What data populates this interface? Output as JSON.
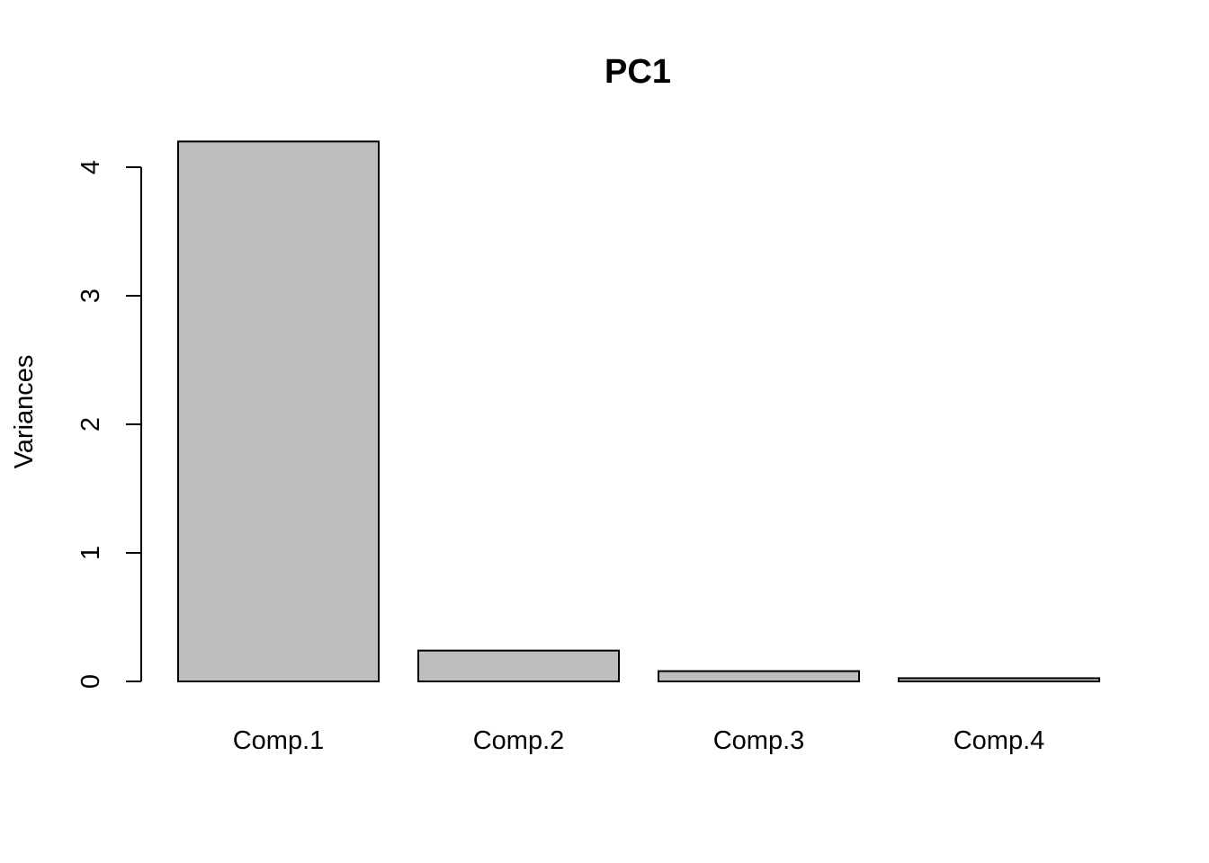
{
  "chart_data": {
    "type": "bar",
    "title": "PC1",
    "xlabel": "",
    "ylabel": "Variances",
    "categories": [
      "Comp.1",
      "Comp.2",
      "Comp.3",
      "Comp.4"
    ],
    "values": [
      4.2,
      0.24,
      0.08,
      0.025
    ],
    "ylim": [
      0,
      4
    ],
    "yticks": [
      0,
      1,
      2,
      3,
      4
    ],
    "grid": false,
    "bar_color": "#bebebe",
    "edge_color": "#000000"
  }
}
